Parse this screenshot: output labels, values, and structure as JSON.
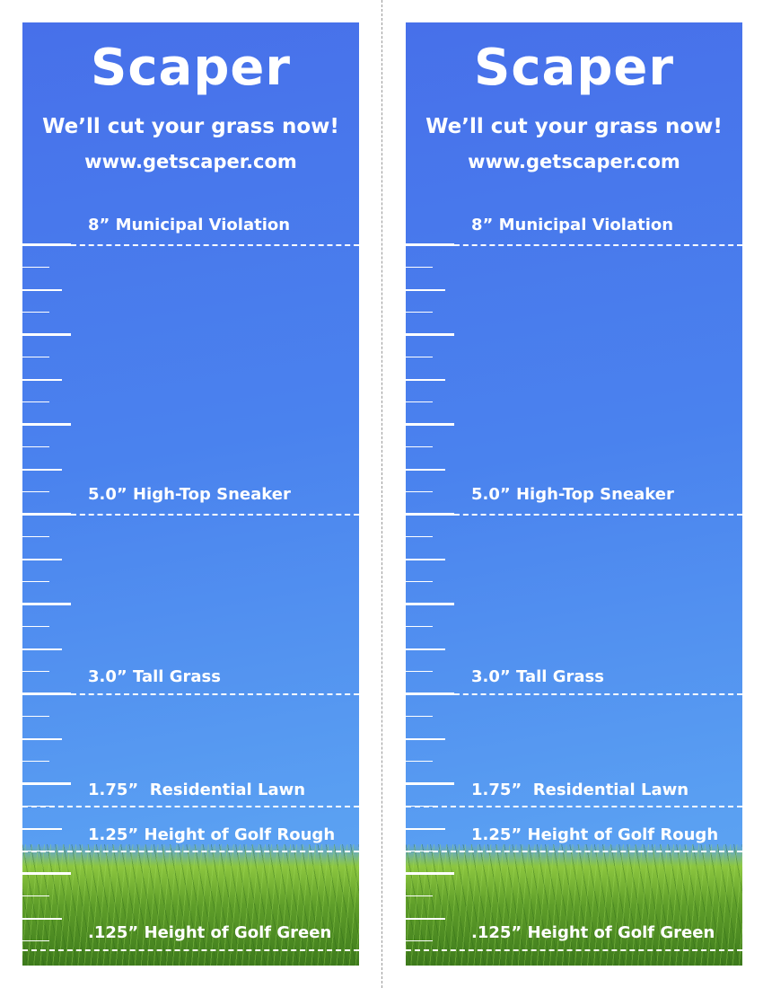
{
  "flyer": {
    "brand": "Scaper",
    "tagline": "We’ll cut your grass now!",
    "url": "www.getscaper.com",
    "markers": [
      {
        "label": "8” Municipal Violation",
        "height_in": 8
      },
      {
        "label": "5.0” High-Top Sneaker",
        "height_in": 5.0
      },
      {
        "label": "3.0” Tall Grass",
        "height_in": 3.0
      },
      {
        "label": "1.75”  Residential Lawn",
        "height_in": 1.75
      },
      {
        "label": "1.25” Height of Golf Rough",
        "height_in": 1.25
      },
      {
        "label": ".125” Height of Golf Green",
        "height_in": 0.125
      }
    ],
    "colors": {
      "sky_top": "#4770ea",
      "sky_bottom": "#62a8f2",
      "grass": "#5f9e2a",
      "text": "#ffffff"
    }
  }
}
